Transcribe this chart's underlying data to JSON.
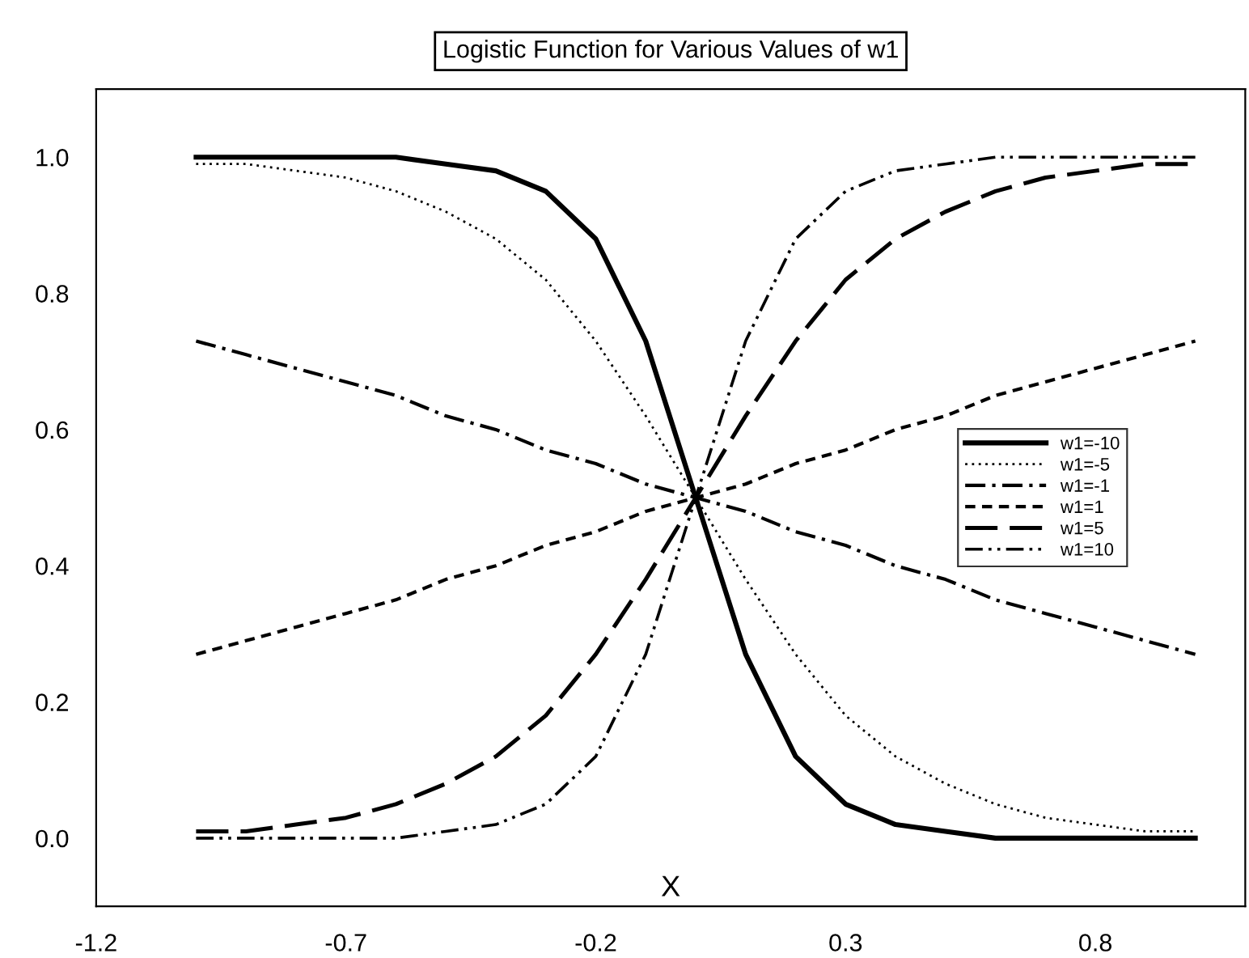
{
  "chart_data": {
    "type": "line",
    "title": "Logistic Function for Various Values of w1",
    "xlabel": "X",
    "x": [
      -1.0,
      -0.9,
      -0.8,
      -0.7,
      -0.6,
      -0.5,
      -0.4,
      -0.3,
      -0.2,
      -0.1,
      0.0,
      0.1,
      0.2,
      0.3,
      0.4,
      0.5,
      0.6,
      0.7,
      0.8,
      0.9,
      1.0
    ],
    "series": [
      {
        "name": "w1=-10",
        "color": "#000000",
        "line_style": "solid",
        "values": [
          1.0,
          1.0,
          1.0,
          1.0,
          1.0,
          0.99,
          0.98,
          0.95,
          0.88,
          0.73,
          0.5,
          0.27,
          0.12,
          0.05,
          0.02,
          0.01,
          0.0,
          0.0,
          0.0,
          0.0,
          0.0
        ]
      },
      {
        "name": "w1=-5",
        "color": "#000000",
        "line_style": "dotted",
        "values": [
          0.99,
          0.99,
          0.98,
          0.97,
          0.95,
          0.92,
          0.88,
          0.82,
          0.73,
          0.62,
          0.5,
          0.38,
          0.27,
          0.18,
          0.12,
          0.08,
          0.05,
          0.03,
          0.02,
          0.01,
          0.01
        ]
      },
      {
        "name": "w1=-1",
        "color": "#000000",
        "line_style": "dashdot",
        "values": [
          0.73,
          0.71,
          0.69,
          0.67,
          0.65,
          0.62,
          0.6,
          0.57,
          0.55,
          0.52,
          0.5,
          0.48,
          0.45,
          0.43,
          0.4,
          0.38,
          0.35,
          0.33,
          0.31,
          0.29,
          0.27
        ]
      },
      {
        "name": "w1=1",
        "color": "#000000",
        "line_style": "dashed",
        "values": [
          0.27,
          0.29,
          0.31,
          0.33,
          0.35,
          0.38,
          0.4,
          0.43,
          0.45,
          0.48,
          0.5,
          0.52,
          0.55,
          0.57,
          0.6,
          0.62,
          0.65,
          0.67,
          0.69,
          0.71,
          0.73
        ]
      },
      {
        "name": "w1=5",
        "color": "#000000",
        "line_style": "longdash",
        "values": [
          0.01,
          0.01,
          0.02,
          0.03,
          0.05,
          0.08,
          0.12,
          0.18,
          0.27,
          0.38,
          0.5,
          0.62,
          0.73,
          0.82,
          0.88,
          0.92,
          0.95,
          0.97,
          0.98,
          0.99,
          0.99
        ]
      },
      {
        "name": "w1=10",
        "color": "#000000",
        "line_style": "dashdotdot",
        "values": [
          0.0,
          0.0,
          0.0,
          0.0,
          0.0,
          0.01,
          0.02,
          0.05,
          0.12,
          0.27,
          0.5,
          0.73,
          0.88,
          0.95,
          0.98,
          0.99,
          1.0,
          1.0,
          1.0,
          1.0,
          1.0
        ]
      }
    ],
    "xlim": [
      -1.2,
      1.1
    ],
    "ylim": [
      -0.1,
      1.1
    ],
    "xticks": [
      -1.2,
      -0.7,
      -0.2,
      0.3,
      0.8
    ],
    "yticks": [
      {
        "value": 0,
        "label": "0.0"
      },
      {
        "value": 0.2,
        "label": "0.2"
      },
      {
        "value": 0.4,
        "label": "0.4"
      },
      {
        "value": 0.6,
        "label": "0.6"
      },
      {
        "value": 0.8,
        "label": "0.8"
      },
      {
        "value": 1,
        "label": "1.0"
      }
    ],
    "grid": false,
    "legend": "right",
    "marker": "none"
  }
}
